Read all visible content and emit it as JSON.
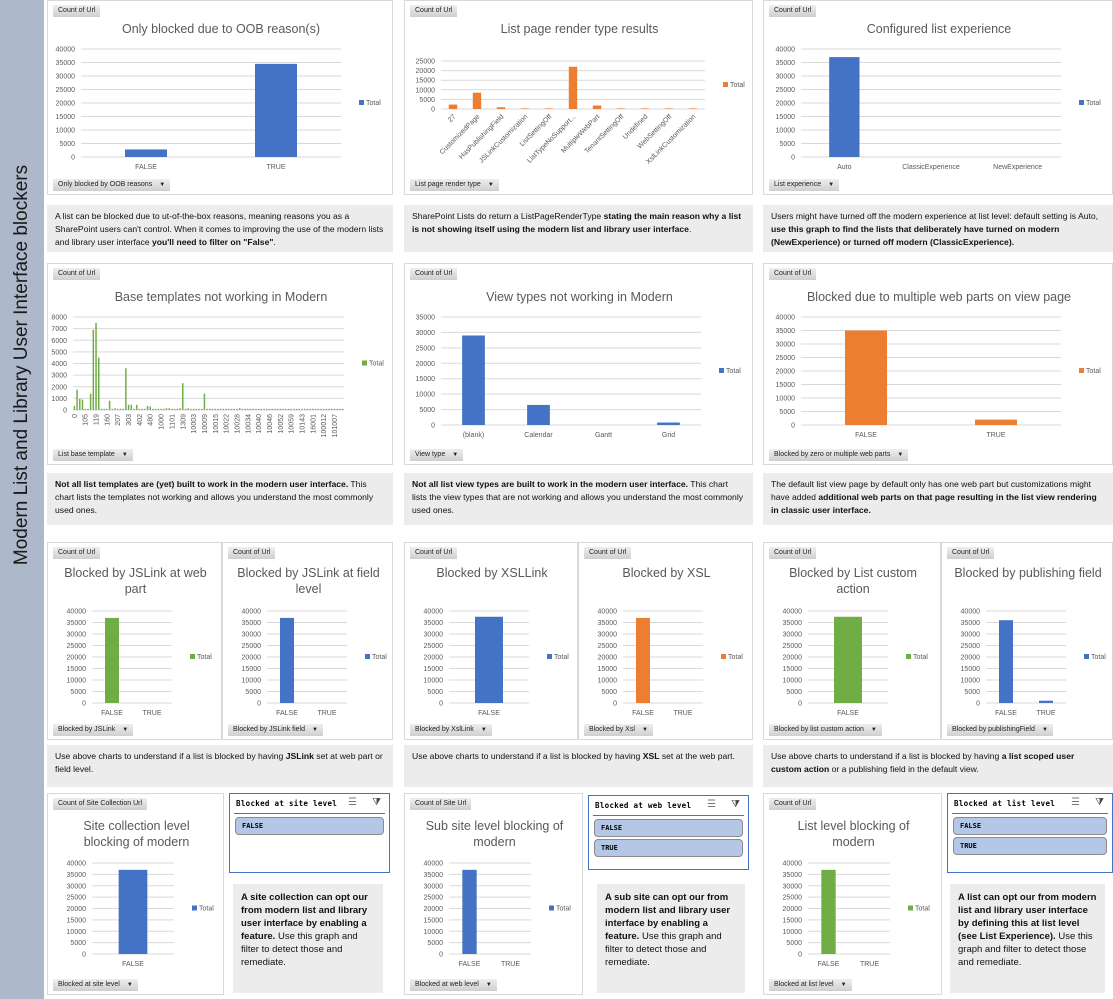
{
  "sidebar": {
    "title": "Modern List and Library User Interface blockers",
    "color": "#adb9ca"
  },
  "colors": {
    "blue": "#4472c4",
    "orange": "#ed7d31",
    "green": "#70ad47"
  },
  "chart_data": [
    {
      "type": "bar",
      "title": "Only blocked due to OOB reason(s)",
      "value_button": "Count of Url",
      "field_button": "Only blocked by OOB reasons",
      "legend": "Total",
      "color": "#4472c4",
      "ylim": [
        0,
        40000
      ],
      "ytick_step": 5000,
      "categories": [
        "FALSE",
        "TRUE"
      ],
      "values": [
        2800,
        34500
      ]
    },
    {
      "type": "bar",
      "title": "List page render type results",
      "value_button": "Count of Url",
      "field_button": "List page render type",
      "legend": "Total",
      "color": "#ed7d31",
      "ylim": [
        0,
        25000
      ],
      "ytick_step": 5000,
      "categories": [
        "27",
        "CustomizedPage",
        "HasPublishingField",
        "JSLinkCustomization",
        "ListSettingOff",
        "ListTypeNoSupport...",
        "MultipleWebPart",
        "TenantSettingOff",
        "Undefined",
        "WebSettingOff",
        "XslLinkCustomization"
      ],
      "values": [
        2300,
        8500,
        900,
        300,
        300,
        22000,
        1800,
        300,
        300,
        300,
        300
      ]
    },
    {
      "type": "bar",
      "title": "Configured list experience",
      "value_button": "Count of Url",
      "field_button": "List experience",
      "legend": "Total",
      "color": "#4472c4",
      "ylim": [
        0,
        40000
      ],
      "ytick_step": 5000,
      "categories": [
        "Auto",
        "ClassicExperience",
        "NewExperience"
      ],
      "values": [
        37000,
        0,
        0
      ]
    },
    {
      "type": "bar",
      "title": "Base templates not working in Modern",
      "value_button": "Count of Url",
      "field_button": "List base template",
      "legend": "Total",
      "color": "#70ad47",
      "ylim": [
        0,
        8000
      ],
      "ytick_step": 1000,
      "x_tick_labels": [
        "0",
        "105",
        "119",
        "160",
        "207",
        "303",
        "402",
        "480",
        "1000",
        "1101",
        "1309",
        "10003",
        "10009",
        "10015",
        "10022",
        "10028",
        "10034",
        "10040",
        "10046",
        "10052",
        "10059",
        "10143",
        "16001",
        "100012",
        "101007"
      ],
      "values": [
        350,
        1750,
        950,
        900,
        100,
        100,
        1400,
        6900,
        7500,
        4500,
        100,
        100,
        100,
        800,
        100,
        150,
        100,
        100,
        100,
        3600,
        450,
        450,
        100,
        450,
        100,
        100,
        100,
        350,
        300,
        100,
        100,
        100,
        100,
        100,
        150,
        150,
        100,
        100,
        100,
        150,
        2300,
        100,
        150,
        100,
        100,
        100,
        100,
        100,
        1400,
        100,
        100,
        100,
        100,
        100,
        100,
        100,
        100,
        100,
        100,
        100,
        100,
        150,
        100,
        100,
        100,
        100,
        100,
        100,
        100,
        100,
        100,
        100,
        100,
        100,
        100,
        100,
        100,
        100,
        100,
        100,
        100,
        100,
        100,
        100,
        100,
        100,
        100,
        100,
        100,
        100,
        100,
        100,
        100,
        100,
        100,
        100,
        100,
        100,
        100,
        100
      ]
    },
    {
      "type": "bar",
      "title": "View types not working in Modern",
      "value_button": "Count of Url",
      "field_button": "View type",
      "legend": "Total",
      "color": "#4472c4",
      "ylim": [
        0,
        35000
      ],
      "ytick_step": 5000,
      "categories": [
        "(blank)",
        "Calendar",
        "Gantt",
        "Grid"
      ],
      "values": [
        29000,
        6500,
        0,
        800
      ]
    },
    {
      "type": "bar",
      "title": "Blocked due to multiple web parts on view page",
      "value_button": "Count of Url",
      "field_button": "Blocked by zero or multiple web parts",
      "legend": "Total",
      "color": "#ed7d31",
      "ylim": [
        0,
        40000
      ],
      "ytick_step": 5000,
      "categories": [
        "FALSE",
        "TRUE"
      ],
      "values": [
        35000,
        2000
      ]
    },
    {
      "type": "bar",
      "title": "Blocked by JSLink at web part",
      "value_button": "Count of Url",
      "field_button": "Blocked by JSLink",
      "legend": "Total",
      "color": "#70ad47",
      "ylim": [
        0,
        40000
      ],
      "ytick_step": 5000,
      "categories": [
        "FALSE",
        "TRUE"
      ],
      "values": [
        37000,
        0
      ]
    },
    {
      "type": "bar",
      "title": "Blocked by JSLink at field level",
      "value_button": "Count of Url",
      "field_button": "Blocked by JSLink field",
      "legend": "Total",
      "color": "#4472c4",
      "ylim": [
        0,
        40000
      ],
      "ytick_step": 5000,
      "categories": [
        "FALSE",
        "TRUE"
      ],
      "values": [
        37000,
        0
      ]
    },
    {
      "type": "bar",
      "title": "Blocked by XSLLink",
      "value_button": "Count of Url",
      "field_button": "Blocked by XslLink",
      "legend": "Total",
      "color": "#4472c4",
      "ylim": [
        0,
        40000
      ],
      "ytick_step": 5000,
      "categories": [
        "FALSE"
      ],
      "values": [
        37500
      ]
    },
    {
      "type": "bar",
      "title": "Blocked by XSL",
      "value_button": "Count of Url",
      "field_button": "Blocked by Xsl",
      "legend": "Total",
      "color": "#ed7d31",
      "ylim": [
        0,
        40000
      ],
      "ytick_step": 5000,
      "categories": [
        "FALSE",
        "TRUE"
      ],
      "values": [
        37000,
        0
      ]
    },
    {
      "type": "bar",
      "title": "Blocked by List custom action",
      "value_button": "Count of Url",
      "field_button": "Blocked by list custom action",
      "legend": "Total",
      "color": "#70ad47",
      "ylim": [
        0,
        40000
      ],
      "ytick_step": 5000,
      "categories": [
        "FALSE"
      ],
      "values": [
        37500
      ]
    },
    {
      "type": "bar",
      "title": "Blocked by publishing field",
      "value_button": "Count of Url",
      "field_button": "Blocked by publishingField",
      "legend": "Total",
      "color": "#4472c4",
      "ylim": [
        0,
        40000
      ],
      "ytick_step": 5000,
      "categories": [
        "FALSE",
        "TRUE"
      ],
      "values": [
        36000,
        1000
      ]
    },
    {
      "type": "bar",
      "title": "Site collection level blocking of modern",
      "value_button": "Count of Site Collection Url",
      "field_button": "Blocked at site level",
      "legend": "Total",
      "color": "#4472c4",
      "ylim": [
        0,
        40000
      ],
      "ytick_step": 5000,
      "categories": [
        "FALSE"
      ],
      "values": [
        37000
      ]
    },
    {
      "type": "bar",
      "title": "Sub site level blocking of modern",
      "value_button": "Count of Site Url",
      "field_button": "Blocked at web level",
      "legend": "Total",
      "color": "#4472c4",
      "ylim": [
        0,
        40000
      ],
      "ytick_step": 5000,
      "categories": [
        "FALSE",
        "TRUE"
      ],
      "values": [
        37000,
        0
      ]
    },
    {
      "type": "bar",
      "title": "List level blocking of modern",
      "value_button": "Count of Url",
      "field_button": "Blocked at list level",
      "legend": "Total",
      "color": "#70ad47",
      "ylim": [
        0,
        40000
      ],
      "ytick_step": 5000,
      "categories": [
        "FALSE",
        "TRUE"
      ],
      "values": [
        37000,
        0
      ]
    }
  ],
  "notes": [
    [
      {
        "t": "A list can be blocked due to ut-of-the-box reasons, meaning reasons you as a SharePoint users can't control. When it comes to improving the use of the modern lists and library user interface "
      },
      {
        "t": "you'll need to filter on \"False\"",
        "b": true
      },
      {
        "t": "."
      }
    ],
    [
      {
        "t": "SharePoint Lists do return a ListPageRenderType "
      },
      {
        "t": "stating the main reason why a list is not showing itself using the modern list and library user interface",
        "b": true
      },
      {
        "t": "."
      }
    ],
    [
      {
        "t": "Users might have turned off the modern experience at list level: default setting is Auto, "
      },
      {
        "t": "use this graph to find the lists that deliberately have turned on modern (NewExperience) or turned off modern (ClassicExperience).",
        "b": true
      }
    ],
    [
      {
        "t": "Not all list templates are (yet) built to work in the modern user interface.",
        "b": true
      },
      {
        "t": " This chart lists the templates not working and allows you understand the most commonly used ones."
      }
    ],
    [
      {
        "t": "Not all list view types are built to work in the modern user interface.",
        "b": true
      },
      {
        "t": " This chart lists the view types that are not working and allows you understand the most commonly used ones."
      }
    ],
    [
      {
        "t": "The default list view page by default only has one web part but customizations might have added "
      },
      {
        "t": "additional web parts on that page resulting in the list view rendering in classic user interface.",
        "b": true
      }
    ],
    [
      {
        "t": "Use above charts to understand if a list is blocked by having "
      },
      {
        "t": "JSLink",
        "b": true
      },
      {
        "t": " set at web part or field level."
      }
    ],
    [
      {
        "t": "Use above charts to understand if a list is blocked by having "
      },
      {
        "t": "XSL",
        "b": true
      },
      {
        "t": " set at the web part."
      }
    ],
    [
      {
        "t": "Use above charts to understand if a list is blocked by having "
      },
      {
        "t": "a list scoped user custom action",
        "b": true
      },
      {
        "t": " or a publishing field in the default view."
      }
    ],
    [
      {
        "t": "A site collection can opt our from modern list and library user interface by enabling a feature.",
        "b": true
      },
      {
        "t": " Use this graph and filter to detect those and remediate."
      }
    ],
    [
      {
        "t": "A sub site can opt our from modern list and library user interface by enabling a feature.",
        "b": true
      },
      {
        "t": " Use this graph and filter to detect those and remediate."
      }
    ],
    [
      {
        "t": "A list can opt our from modern list and library user interface by defining this at list level (see List Experience).",
        "b": true
      },
      {
        "t": " Use this graph and filter to detect those and remediate."
      }
    ]
  ],
  "slicers": [
    {
      "title": "Blocked at site level",
      "items": [
        "FALSE"
      ]
    },
    {
      "title": "Blocked at web level",
      "items": [
        "FALSE",
        "TRUE"
      ]
    },
    {
      "title": "Blocked at list level",
      "items": [
        "FALSE",
        "TRUE"
      ]
    }
  ]
}
